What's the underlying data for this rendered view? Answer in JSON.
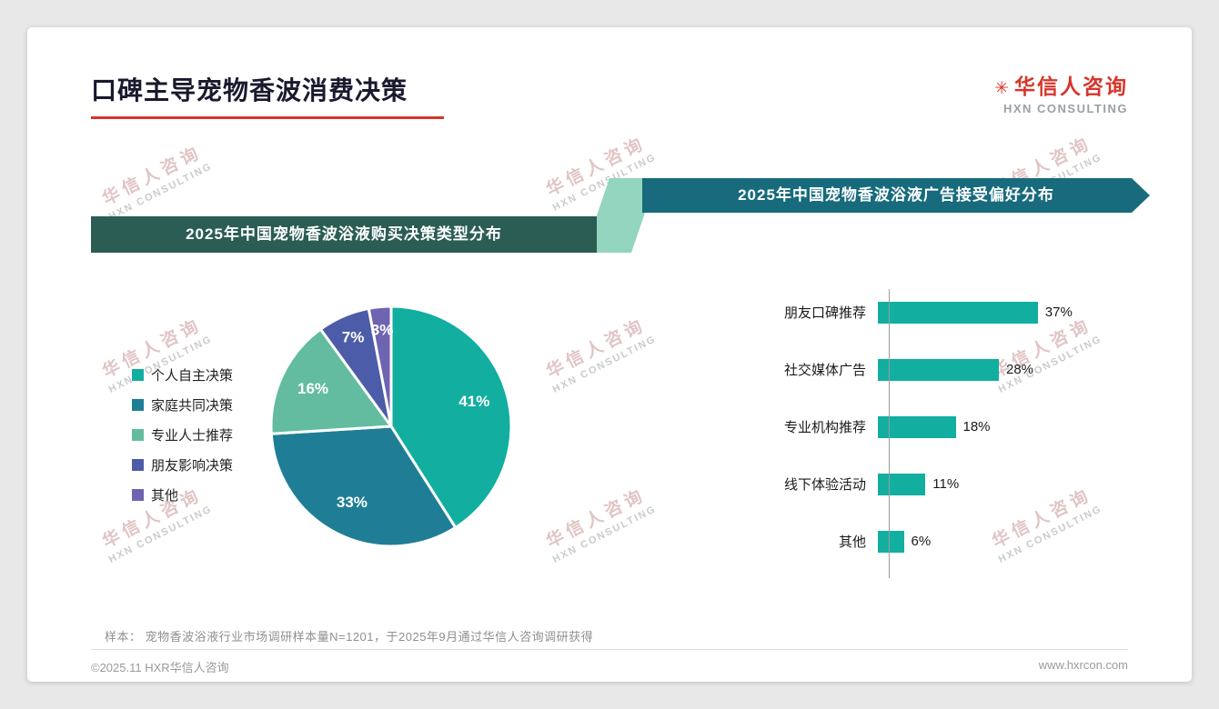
{
  "page": {
    "title": "口碑主导宠物香波消费决策",
    "logo": {
      "star": "✳",
      "zh": "华信人咨询",
      "en": "HXN CONSULTING"
    },
    "watermark": {
      "zh": "华信人咨询",
      "en": "HXN CONSULTING"
    },
    "footnote": "样本： 宠物香波浴液行业市场调研样本量N=1201，于2025年9月通过华信人咨询调研获得",
    "footer": {
      "copyright": "©2025.11 HXR华信人咨询",
      "website": "www.hxrcon.com"
    }
  },
  "colors": {
    "brand_red": "#D7352B",
    "left_banner": "#2B5D54",
    "right_banner": "#176B7C",
    "connector": "#93D5BE",
    "teal": "#12AEA0"
  },
  "chart_data": [
    {
      "type": "pie",
      "title": "2025年中国宠物香波浴液购买决策类型分布",
      "categories": [
        "个人自主决策",
        "家庭共同决策",
        "专业人士推荐",
        "朋友影响决策",
        "其他"
      ],
      "values": [
        41,
        33,
        16,
        7,
        3
      ],
      "unit": "%",
      "colors": [
        "#12AEA0",
        "#1F7E96",
        "#63BCA0",
        "#4D5CA8",
        "#6E64B0"
      ],
      "start_angle": "top",
      "direction": "clockwise",
      "legend_position": "left"
    },
    {
      "type": "bar",
      "title": "2025年中国宠物香波浴液广告接受偏好分布",
      "orientation": "horizontal",
      "categories": [
        "朋友口碑推荐",
        "社交媒体广告",
        "专业机构推荐",
        "线下体验活动",
        "其他"
      ],
      "values": [
        37,
        28,
        18,
        11,
        6
      ],
      "unit": "%",
      "bar_color": "#12AEA0",
      "xlim": [
        0,
        40
      ],
      "grid": false,
      "legend": false
    }
  ]
}
